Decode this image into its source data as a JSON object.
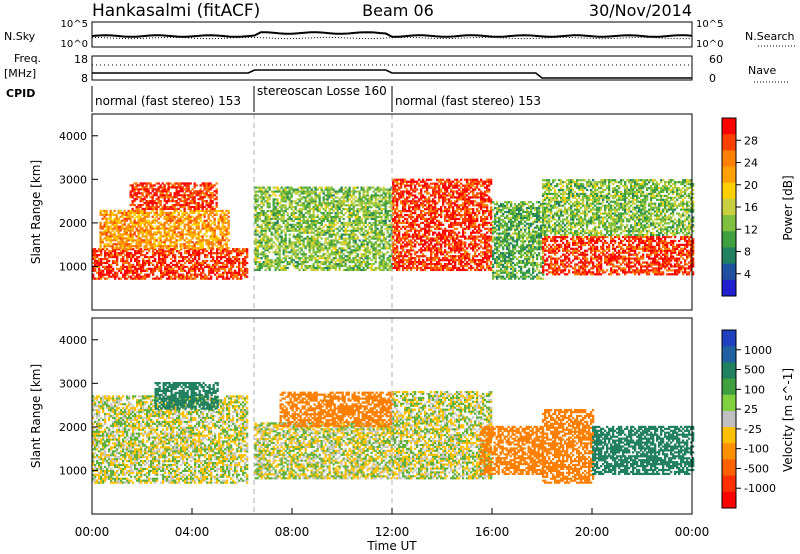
{
  "header": {
    "station": "Hankasalmi (fitACF)",
    "beam": "Beam 06",
    "date": "30/Nov/2014"
  },
  "strip1": {
    "left_label": "N.Sky",
    "right_label": "N.Search",
    "left_ticks": [
      "10^5",
      "10^0"
    ],
    "right_ticks": [
      "10^5",
      "10^0"
    ]
  },
  "strip2": {
    "left_label_1": "Freq.",
    "left_label_2": "[MHz]",
    "right_label": "Nave",
    "left_ticks": [
      "18",
      "8"
    ],
    "right_ticks": [
      "60",
      "0"
    ]
  },
  "cpid": {
    "label": "CPID",
    "segments": [
      {
        "text": "normal (fast stereo) 153",
        "start_hour": 0
      },
      {
        "text": "stereoscan Losse 160",
        "start_hour": 6.5
      },
      {
        "text": "normal (fast stereo) 153",
        "start_hour": 12
      }
    ]
  },
  "x_axis": {
    "label": "Time UT",
    "ticks": [
      "00:00",
      "04:00",
      "08:00",
      "12:00",
      "16:00",
      "20:00",
      "00:00"
    ],
    "range_hours": [
      0,
      24
    ]
  },
  "panels": {
    "power": {
      "ylabel": "Slant Range [km]",
      "yticks": [
        "4000",
        "3000",
        "2000",
        "1000"
      ],
      "ylim": [
        0,
        4500
      ],
      "colorbar_label": "Power [dB]",
      "colorbar_ticks": [
        "28",
        "24",
        "20",
        "16",
        "12",
        "8",
        "4"
      ],
      "colorbar_colors": [
        "#ff0000",
        "#ff4000",
        "#ff8000",
        "#ffa000",
        "#ffd000",
        "#c8d040",
        "#80c040",
        "#40a040",
        "#208060",
        "#2050a0",
        "#2020d0"
      ]
    },
    "velocity": {
      "ylabel": "Slant Range [km]",
      "yticks": [
        "4000",
        "3000",
        "2000",
        "1000"
      ],
      "ylim": [
        0,
        4500
      ],
      "colorbar_label": "Velocity [m s^-1]",
      "colorbar_ticks": [
        "1000",
        "500",
        "100",
        "25",
        "-25",
        "-100",
        "-500",
        "-1000"
      ],
      "colorbar_colors": [
        "#2040c0",
        "#2060a0",
        "#208060",
        "#40a040",
        "#80d040",
        "#c0c0c0",
        "#ffc000",
        "#ff9000",
        "#ff6000",
        "#ff3000",
        "#ff0000"
      ]
    }
  },
  "chart_data": [
    {
      "type": "heatmap",
      "title": "Power [dB]",
      "xlabel": "Time UT",
      "ylabel": "Slant Range [km]",
      "x_range_hours": [
        0,
        24
      ],
      "ylim": [
        0,
        4500
      ],
      "mode_changes_hours": [
        6.5,
        12
      ],
      "regions": [
        {
          "t0": 0,
          "t1": 6.2,
          "r0": 700,
          "r1": 1400,
          "value": 28
        },
        {
          "t0": 0.3,
          "t1": 5.5,
          "r0": 1400,
          "r1": 2300,
          "value": 22
        },
        {
          "t0": 1.5,
          "t1": 5.0,
          "r0": 2300,
          "r1": 2900,
          "value": 28
        },
        {
          "t0": 6.5,
          "t1": 12,
          "r0": 900,
          "r1": 2800,
          "value": 12
        },
        {
          "t0": 12,
          "t1": 16,
          "r0": 900,
          "r1": 3000,
          "value": 28
        },
        {
          "t0": 16,
          "t1": 18,
          "r0": 700,
          "r1": 2500,
          "value": 10
        },
        {
          "t0": 18,
          "t1": 24,
          "r0": 800,
          "r1": 1700,
          "value": 28
        },
        {
          "t0": 18,
          "t1": 24,
          "r0": 1700,
          "r1": 3000,
          "value": 12
        }
      ]
    },
    {
      "type": "heatmap",
      "title": "Velocity [m s^-1]",
      "xlabel": "Time UT",
      "ylabel": "Slant Range [km]",
      "x_range_hours": [
        0,
        24
      ],
      "ylim": [
        0,
        4500
      ],
      "regions": [
        {
          "t0": 0,
          "t1": 6.2,
          "r0": 700,
          "r1": 2700,
          "value": 0
        },
        {
          "t0": 2.5,
          "t1": 5.0,
          "r0": 2400,
          "r1": 3000,
          "value": 200
        },
        {
          "t0": 6.5,
          "t1": 12,
          "r0": 800,
          "r1": 2100,
          "value": 0
        },
        {
          "t0": 7.5,
          "t1": 12,
          "r0": 2000,
          "r1": 2800,
          "value": -300
        },
        {
          "t0": 12,
          "t1": 16,
          "r0": 800,
          "r1": 2800,
          "value": 0
        },
        {
          "t0": 15.5,
          "t1": 18,
          "r0": 900,
          "r1": 2000,
          "value": -300
        },
        {
          "t0": 18,
          "t1": 20,
          "r0": 700,
          "r1": 2400,
          "value": -300
        },
        {
          "t0": 20,
          "t1": 24,
          "r0": 900,
          "r1": 2000,
          "value": 200
        }
      ]
    }
  ]
}
